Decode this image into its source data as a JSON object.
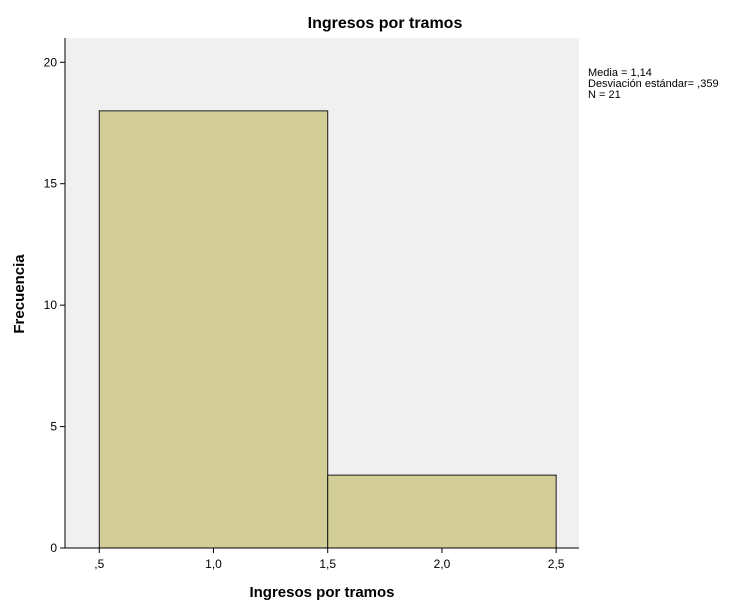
{
  "chart_data": {
    "type": "bar",
    "title": "Ingresos por tramos",
    "xlabel": "Ingresos por tramos",
    "ylabel": "Frecuencia",
    "bins": [
      {
        "start": 0.5,
        "end": 1.5,
        "count": 18
      },
      {
        "start": 1.5,
        "end": 2.5,
        "count": 3
      }
    ],
    "xlim": [
      0.35,
      2.6
    ],
    "ylim": [
      0,
      21
    ],
    "x_ticks": [
      {
        "value": 0.5,
        "label": ",5"
      },
      {
        "value": 1.0,
        "label": "1,0"
      },
      {
        "value": 1.5,
        "label": "1,5"
      },
      {
        "value": 2.0,
        "label": "2,0"
      },
      {
        "value": 2.5,
        "label": "2,5"
      }
    ],
    "y_ticks": [
      {
        "value": 0,
        "label": "0"
      },
      {
        "value": 5,
        "label": "5"
      },
      {
        "value": 10,
        "label": "10"
      },
      {
        "value": 15,
        "label": "15"
      },
      {
        "value": 20,
        "label": "20"
      }
    ],
    "stats_lines": [
      "Media = 1,14",
      "Desviación estándar= ,359",
      "N = 21"
    ],
    "colors": {
      "bar_fill": "#d3ce97",
      "bar_stroke": "#1a1a1a",
      "plot_background": "#f0f0f0",
      "axis": "#000000"
    },
    "grid": false
  }
}
